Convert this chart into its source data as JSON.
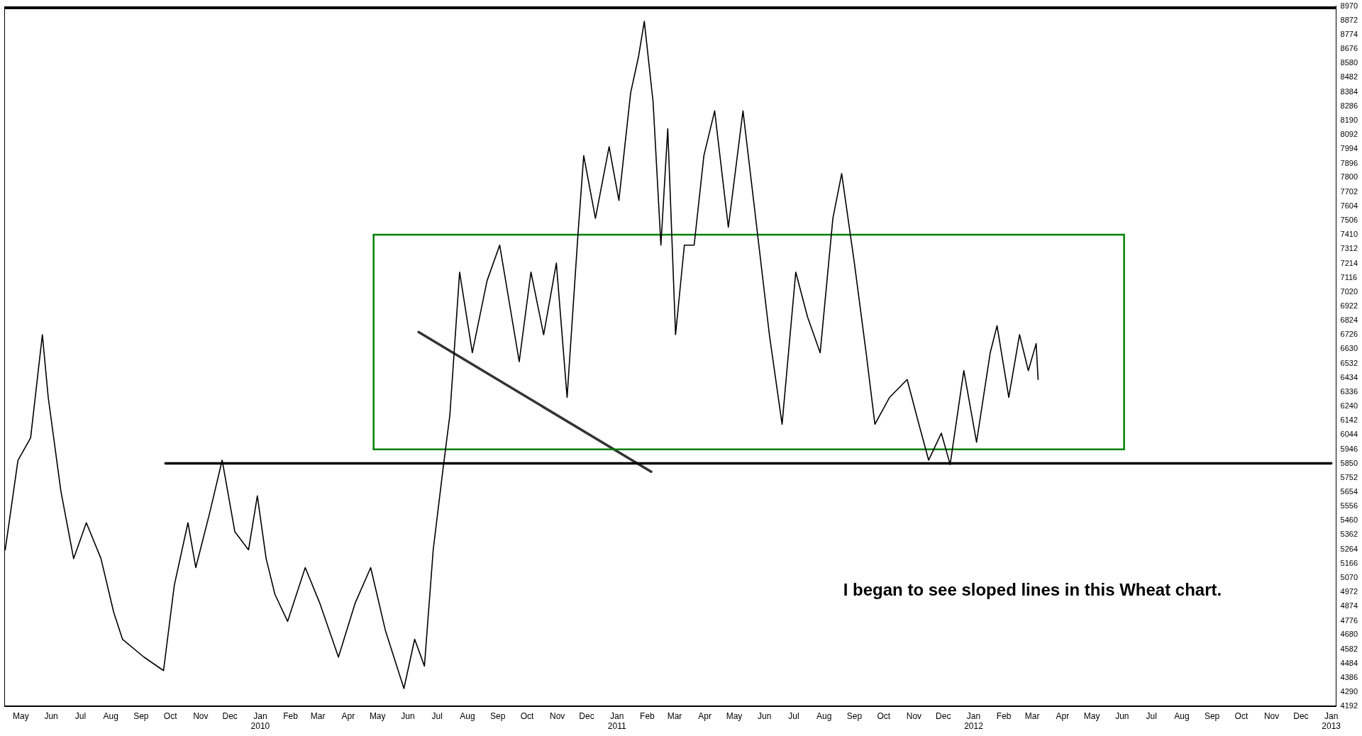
{
  "chart_data": {
    "type": "line",
    "xlim": [
      "2009-04-28",
      "2013-01-20"
    ],
    "ylim": [
      4192,
      8970
    ],
    "xticks": [
      {
        "value": "2009-05-15",
        "label": "May"
      },
      {
        "value": "2009-06-15",
        "label": "Jun"
      },
      {
        "value": "2009-07-15",
        "label": "Jul"
      },
      {
        "value": "2009-08-15",
        "label": "Aug"
      },
      {
        "value": "2009-09-15",
        "label": "Sep"
      },
      {
        "value": "2009-10-15",
        "label": "Oct"
      },
      {
        "value": "2009-11-15",
        "label": "Nov"
      },
      {
        "value": "2009-12-15",
        "label": "Dec"
      },
      {
        "value": "2010-01-15",
        "label": "Jan 2010"
      },
      {
        "value": "2010-02-15",
        "label": "Feb"
      },
      {
        "value": "2010-03-15",
        "label": "Mar"
      },
      {
        "value": "2010-04-15",
        "label": "Apr"
      },
      {
        "value": "2010-05-15",
        "label": "May"
      },
      {
        "value": "2010-06-15",
        "label": "Jun"
      },
      {
        "value": "2010-07-15",
        "label": "Jul"
      },
      {
        "value": "2010-08-15",
        "label": "Aug"
      },
      {
        "value": "2010-09-15",
        "label": "Sep"
      },
      {
        "value": "2010-10-15",
        "label": "Oct"
      },
      {
        "value": "2010-11-15",
        "label": "Nov"
      },
      {
        "value": "2010-12-15",
        "label": "Dec"
      },
      {
        "value": "2011-01-15",
        "label": "Jan 2011"
      },
      {
        "value": "2011-02-15",
        "label": "Feb"
      },
      {
        "value": "2011-03-15",
        "label": "Mar"
      },
      {
        "value": "2011-04-15",
        "label": "Apr"
      },
      {
        "value": "2011-05-15",
        "label": "May"
      },
      {
        "value": "2011-06-15",
        "label": "Jun"
      },
      {
        "value": "2011-07-15",
        "label": "Jul"
      },
      {
        "value": "2011-08-15",
        "label": "Aug"
      },
      {
        "value": "2011-09-15",
        "label": "Sep"
      },
      {
        "value": "2011-10-15",
        "label": "Oct"
      },
      {
        "value": "2011-11-15",
        "label": "Nov"
      },
      {
        "value": "2011-12-15",
        "label": "Dec"
      },
      {
        "value": "2012-01-15",
        "label": "Jan 2012"
      },
      {
        "value": "2012-02-15",
        "label": "Feb"
      },
      {
        "value": "2012-03-15",
        "label": "Mar"
      },
      {
        "value": "2012-04-15",
        "label": "Apr"
      },
      {
        "value": "2012-05-15",
        "label": "May"
      },
      {
        "value": "2012-06-15",
        "label": "Jun"
      },
      {
        "value": "2012-07-15",
        "label": "Jul"
      },
      {
        "value": "2012-08-15",
        "label": "Aug"
      },
      {
        "value": "2012-09-15",
        "label": "Sep"
      },
      {
        "value": "2012-10-15",
        "label": "Oct"
      },
      {
        "value": "2012-11-15",
        "label": "Nov"
      },
      {
        "value": "2012-12-15",
        "label": "Dec"
      },
      {
        "value": "2013-01-15",
        "label": "Jan 2013"
      }
    ],
    "yticks": [
      4192,
      4290,
      4386,
      4484,
      4582,
      4680,
      4776,
      4874,
      4972,
      5070,
      5166,
      5264,
      5362,
      5460,
      5556,
      5654,
      5752,
      5850,
      5946,
      6044,
      6142,
      6240,
      6336,
      6434,
      6532,
      6630,
      6726,
      6824,
      6922,
      7020,
      7116,
      7214,
      7312,
      7410,
      7506,
      7604,
      7702,
      7800,
      7896,
      7994,
      8092,
      8190,
      8286,
      8384,
      8482,
      8580,
      8676,
      8774,
      8872,
      8970
    ],
    "grid": false,
    "legend": false,
    "marker": "none",
    "line_style": "solid",
    "annotations": [
      "I began to see sloped lines in this Wheat chart."
    ],
    "series": [
      {
        "color": "#000000",
        "x": [
          "2009-04-29",
          "2009-05-12",
          "2009-05-25",
          "2009-06-06",
          "2009-06-12",
          "2009-06-25",
          "2009-07-08",
          "2009-07-21",
          "2009-08-05",
          "2009-08-18",
          "2009-08-27",
          "2009-09-18",
          "2009-10-08",
          "2009-10-19",
          "2009-11-02",
          "2009-11-10",
          "2009-11-24",
          "2009-12-07",
          "2009-12-20",
          "2010-01-03",
          "2010-01-12",
          "2010-01-21",
          "2010-01-30",
          "2010-02-12",
          "2010-03-02",
          "2010-03-17",
          "2010-04-05",
          "2010-04-22",
          "2010-05-08",
          "2010-05-23",
          "2010-06-11",
          "2010-06-22",
          "2010-07-02",
          "2010-07-11",
          "2010-07-21",
          "2010-07-28",
          "2010-08-07",
          "2010-08-20",
          "2010-09-04",
          "2010-09-17",
          "2010-10-07",
          "2010-10-19",
          "2010-11-01",
          "2010-11-14",
          "2010-11-25",
          "2010-12-06",
          "2010-12-12",
          "2010-12-24",
          "2011-01-07",
          "2011-01-17",
          "2011-01-29",
          "2011-02-06",
          "2011-02-12",
          "2011-02-21",
          "2011-03-01",
          "2011-03-08",
          "2011-03-16",
          "2011-03-25",
          "2011-04-04",
          "2011-04-14",
          "2011-04-25",
          "2011-05-09",
          "2011-05-24",
          "2011-06-06",
          "2011-06-20",
          "2011-07-03",
          "2011-07-17",
          "2011-07-29",
          "2011-08-11",
          "2011-08-24",
          "2011-09-02",
          "2011-09-15",
          "2011-09-27",
          "2011-10-06",
          "2011-10-21",
          "2011-11-08",
          "2011-11-20",
          "2011-11-30",
          "2011-12-13",
          "2011-12-22",
          "2012-01-05",
          "2012-01-18",
          "2012-02-01",
          "2012-02-08",
          "2012-02-20",
          "2012-03-02",
          "2012-03-11",
          "2012-03-19",
          "2012-03-21"
        ],
        "values": [
          5260,
          5870,
          6025,
          6728,
          6300,
          5658,
          5200,
          5445,
          5200,
          4834,
          4650,
          4528,
          4436,
          5017,
          5445,
          5139,
          5506,
          5872,
          5383,
          5260,
          5628,
          5200,
          4956,
          4772,
          5139,
          4895,
          4528,
          4895,
          5139,
          4711,
          4314,
          4650,
          4467,
          5261,
          5811,
          6178,
          7155,
          6605,
          7094,
          7339,
          6544,
          7155,
          6728,
          7216,
          6300,
          7400,
          7950,
          7522,
          8011,
          7644,
          8377,
          8622,
          8866,
          8316,
          7339,
          8133,
          6728,
          7339,
          7339,
          7950,
          8255,
          7461,
          8255,
          7522,
          6728,
          6117,
          7155,
          6850,
          6605,
          7522,
          7827,
          7216,
          6605,
          6117,
          6300,
          6422,
          6117,
          5872,
          6056,
          5842,
          6483,
          5994,
          6605,
          6789,
          6300,
          6728,
          6483,
          6667,
          6422
        ]
      },
      {
        "type": "line",
        "color": "#008000",
        "x": [
          "2010-05-11",
          "2012-06-17"
        ],
        "values": [
          7410,
          7410
        ]
      },
      {
        "type": "line",
        "color": "#008000",
        "x": [
          "2010-05-11",
          "2012-06-17"
        ],
        "values": [
          5946,
          5946
        ]
      },
      {
        "type": "line",
        "color": "#008000",
        "x": [
          "2010-05-11",
          "2010-05-11"
        ],
        "values": [
          5946,
          7410
        ]
      },
      {
        "type": "line",
        "color": "#008000",
        "x": [
          "2012-06-17",
          "2012-06-17"
        ],
        "values": [
          5946,
          7410
        ]
      },
      {
        "type": "line",
        "color": "#000000",
        "x": [
          "2009-10-10",
          "2013-01-15"
        ],
        "values": [
          5850,
          5850
        ]
      },
      {
        "type": "line",
        "color": "#333333",
        "x": [
          "2010-06-26",
          "2011-02-19"
        ],
        "values": [
          6746,
          5793
        ]
      }
    ]
  }
}
